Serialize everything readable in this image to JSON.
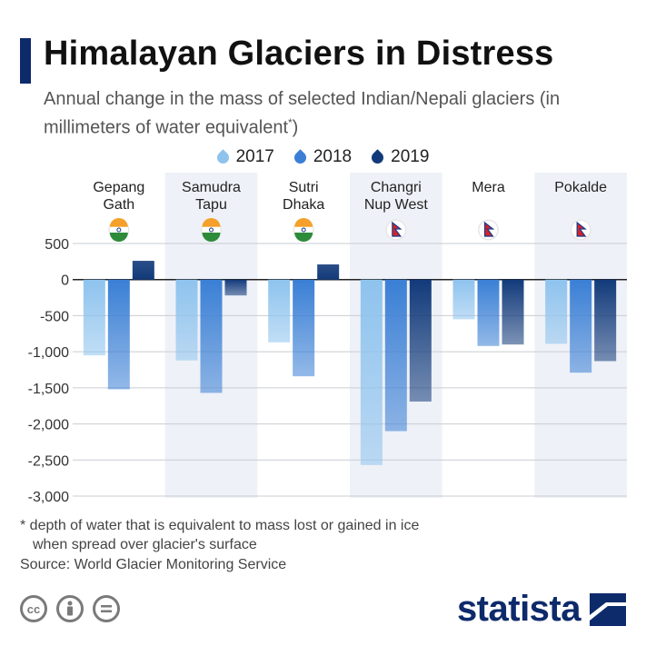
{
  "title": "Himalayan Glaciers in Distress",
  "subtitle": "Annual change in the mass of selected Indian/Nepali glaciers (in millimeters of water equivalent",
  "subtitle_mark": "*",
  "subtitle_end": ")",
  "legend": [
    {
      "label": "2017",
      "color": "#8ec3ee"
    },
    {
      "label": "2018",
      "color": "#3a7fd5"
    },
    {
      "label": "2019",
      "color": "#123a7a"
    }
  ],
  "footnote": {
    "line1": "* depth of water that is equivalent to mass lost or gained in ice",
    "line2": "when spread over glacier's surface"
  },
  "source": "Source: World Glacier Monitoring Service",
  "brand": "statista",
  "license_icons": [
    "cc-icon",
    "attribution-icon",
    "noderivs-icon"
  ],
  "chart_data": {
    "type": "bar",
    "categories": [
      {
        "name": [
          "Gepang",
          "Gath"
        ],
        "country": "India"
      },
      {
        "name": [
          "Samudra",
          "Tapu"
        ],
        "country": "India"
      },
      {
        "name": [
          "Sutri",
          "Dhaka"
        ],
        "country": "India"
      },
      {
        "name": [
          "Changri",
          "Nup West"
        ],
        "country": "Nepal"
      },
      {
        "name": [
          "Mera"
        ],
        "country": "Nepal"
      },
      {
        "name": [
          "Pokalde"
        ],
        "country": "Nepal"
      }
    ],
    "series": [
      {
        "name": "2017",
        "values": [
          -1050,
          -1120,
          -870,
          -2570,
          -550,
          -890
        ]
      },
      {
        "name": "2018",
        "values": [
          -1520,
          -1570,
          -1340,
          -2100,
          -920,
          -1290
        ]
      },
      {
        "name": "2019",
        "values": [
          260,
          -220,
          210,
          -1690,
          -900,
          -1130
        ]
      }
    ],
    "ylim": [
      -3000,
      500
    ],
    "yticks": [
      500,
      0,
      -500,
      -1000,
      -1500,
      -2000,
      -2500,
      -3000
    ],
    "ytick_labels": [
      "500",
      "0",
      "-500",
      "-1,000",
      "-1,500",
      "-2,000",
      "-2,500",
      "-3,000"
    ],
    "grid": true,
    "legend_position": "top-center"
  }
}
